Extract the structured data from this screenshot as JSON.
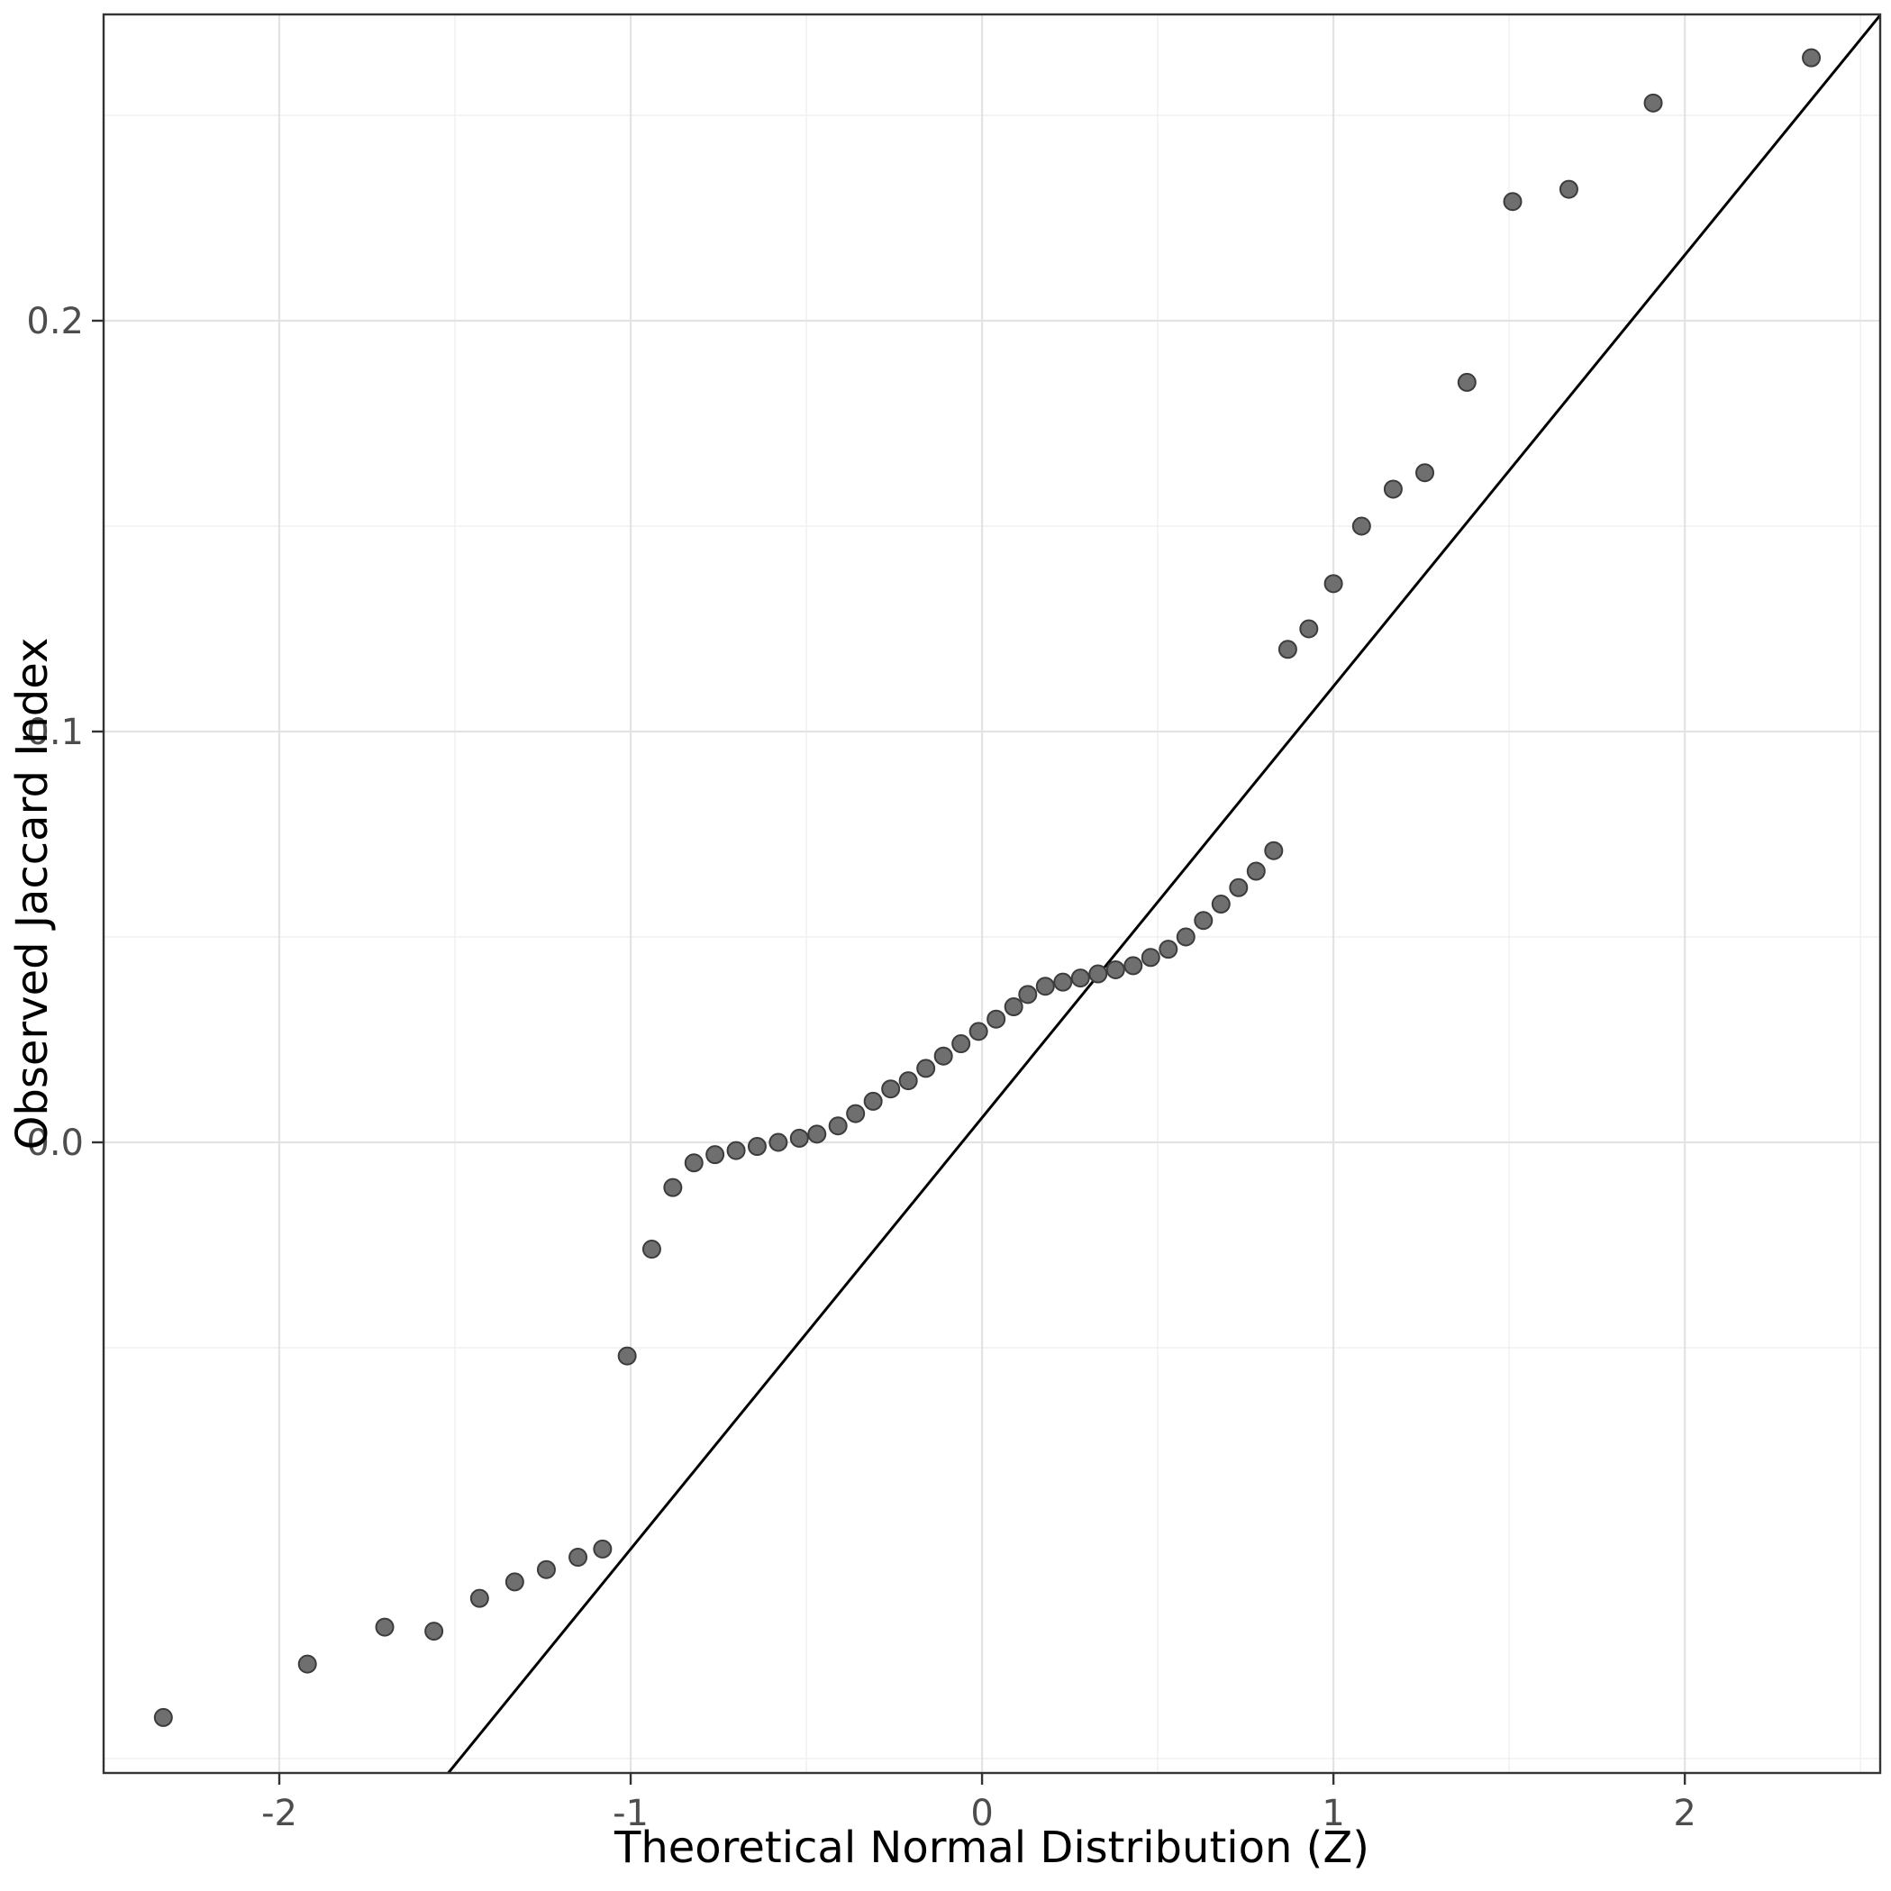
{
  "figure": {
    "kind": "qq-plot",
    "description": "Q-Q plot of observed Jaccard index values against theoretical normal quantiles with reference line"
  },
  "chart_data": {
    "type": "scatter",
    "subtype": "qq-plot",
    "title": "",
    "xlabel": "Theoretical Normal Distribution (Z)",
    "ylabel": "Observed Jaccard Index",
    "xlim": [
      -2.5,
      2.556
    ],
    "ylim": [
      -0.15351,
      0.27456
    ],
    "grid": true,
    "legend": "none",
    "x_ticks": [
      -2,
      -1,
      0,
      1,
      2
    ],
    "x_tick_labels": [
      "-2",
      "-1",
      "0",
      "1",
      "2"
    ],
    "x_minor_ticks": [
      -2.5,
      -1.5,
      -0.5,
      0.5,
      1.5,
      2.5
    ],
    "y_ticks": [
      0.0,
      0.1,
      0.2
    ],
    "y_tick_labels": [
      "0.0",
      "0.1",
      "0.2"
    ],
    "y_minor_ticks": [
      -0.15,
      -0.05,
      0.05,
      0.15,
      0.25
    ],
    "reference_line": {
      "slope": 0.105,
      "intercept": 0.006,
      "color": "#000000",
      "width": 3
    },
    "points": [
      [
        -2.33,
        -0.14
      ],
      [
        -1.92,
        -0.127
      ],
      [
        -1.7,
        -0.118
      ],
      [
        -1.56,
        -0.119
      ],
      [
        -1.43,
        -0.111
      ],
      [
        -1.33,
        -0.107
      ],
      [
        -1.24,
        -0.104
      ],
      [
        -1.15,
        -0.101
      ],
      [
        -1.08,
        -0.099
      ],
      [
        -1.01,
        -0.052
      ],
      [
        -0.94,
        -0.026
      ],
      [
        -0.88,
        -0.011
      ],
      [
        -0.82,
        -0.005
      ],
      [
        -0.76,
        -0.003
      ],
      [
        -0.7,
        -0.002
      ],
      [
        -0.64,
        -0.001
      ],
      [
        -0.58,
        0.0
      ],
      [
        -0.52,
        0.001
      ],
      [
        -0.47,
        0.002
      ],
      [
        -0.41,
        0.004
      ],
      [
        -0.36,
        0.007
      ],
      [
        -0.31,
        0.01
      ],
      [
        -0.26,
        0.013
      ],
      [
        -0.21,
        0.015
      ],
      [
        -0.16,
        0.018
      ],
      [
        -0.11,
        0.021
      ],
      [
        -0.06,
        0.024
      ],
      [
        -0.01,
        0.027
      ],
      [
        0.04,
        0.03
      ],
      [
        0.09,
        0.033
      ],
      [
        0.13,
        0.036
      ],
      [
        0.18,
        0.038
      ],
      [
        0.23,
        0.039
      ],
      [
        0.28,
        0.04
      ],
      [
        0.33,
        0.041
      ],
      [
        0.38,
        0.042
      ],
      [
        0.43,
        0.043
      ],
      [
        0.48,
        0.045
      ],
      [
        0.53,
        0.047
      ],
      [
        0.58,
        0.05
      ],
      [
        0.63,
        0.054
      ],
      [
        0.68,
        0.058
      ],
      [
        0.73,
        0.062
      ],
      [
        0.78,
        0.066
      ],
      [
        0.83,
        0.071
      ],
      [
        0.87,
        0.12
      ],
      [
        0.93,
        0.125
      ],
      [
        1.0,
        0.136
      ],
      [
        1.08,
        0.15
      ],
      [
        1.17,
        0.159
      ],
      [
        1.26,
        0.163
      ],
      [
        1.38,
        0.185
      ],
      [
        1.51,
        0.229
      ],
      [
        1.67,
        0.232
      ],
      [
        1.91,
        0.253
      ],
      [
        2.36,
        0.264
      ]
    ],
    "colors": {
      "background": "#ffffff",
      "panel_background": "#ffffff",
      "panel_border": "#333333",
      "grid_major": "#e3e3e3",
      "grid_minor": "#f1f1f1",
      "point_fill": "#6f6f6f",
      "point_stroke": "#3c3c3c",
      "reference_line": "#000000",
      "tick_color": "#333333",
      "tick_label_color": "#4d4d4d",
      "axis_title_color": "#000000"
    },
    "point_radius": 9.5
  }
}
